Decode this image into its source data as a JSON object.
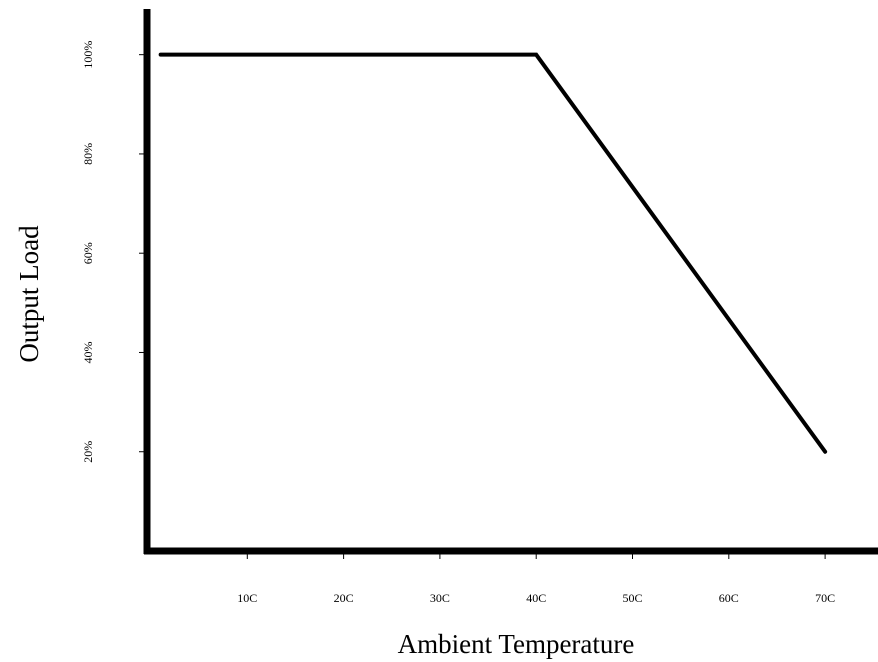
{
  "chart_data": {
    "type": "line",
    "xlabel": "Ambient Temperature",
    "ylabel": "Output Load",
    "x_ticks": [
      {
        "value": 10,
        "label": "10C"
      },
      {
        "value": 20,
        "label": "20C"
      },
      {
        "value": 30,
        "label": "30C"
      },
      {
        "value": 40,
        "label": "40C"
      },
      {
        "value": 50,
        "label": "50C"
      },
      {
        "value": 60,
        "label": "60C"
      },
      {
        "value": 70,
        "label": "70C"
      }
    ],
    "y_ticks": [
      {
        "value": 20,
        "label": "20%"
      },
      {
        "value": 40,
        "label": "40%"
      },
      {
        "value": 60,
        "label": "60%"
      },
      {
        "value": 80,
        "label": "80%"
      },
      {
        "value": 100,
        "label": "100%"
      }
    ],
    "xlim": [
      0,
      73
    ],
    "ylim": [
      0,
      109
    ],
    "grid": false,
    "series": [
      {
        "color": "#000000",
        "points": [
          {
            "x": 1,
            "y": 100
          },
          {
            "x": 40,
            "y": 100
          },
          {
            "x": 70,
            "y": 20
          }
        ]
      }
    ]
  }
}
